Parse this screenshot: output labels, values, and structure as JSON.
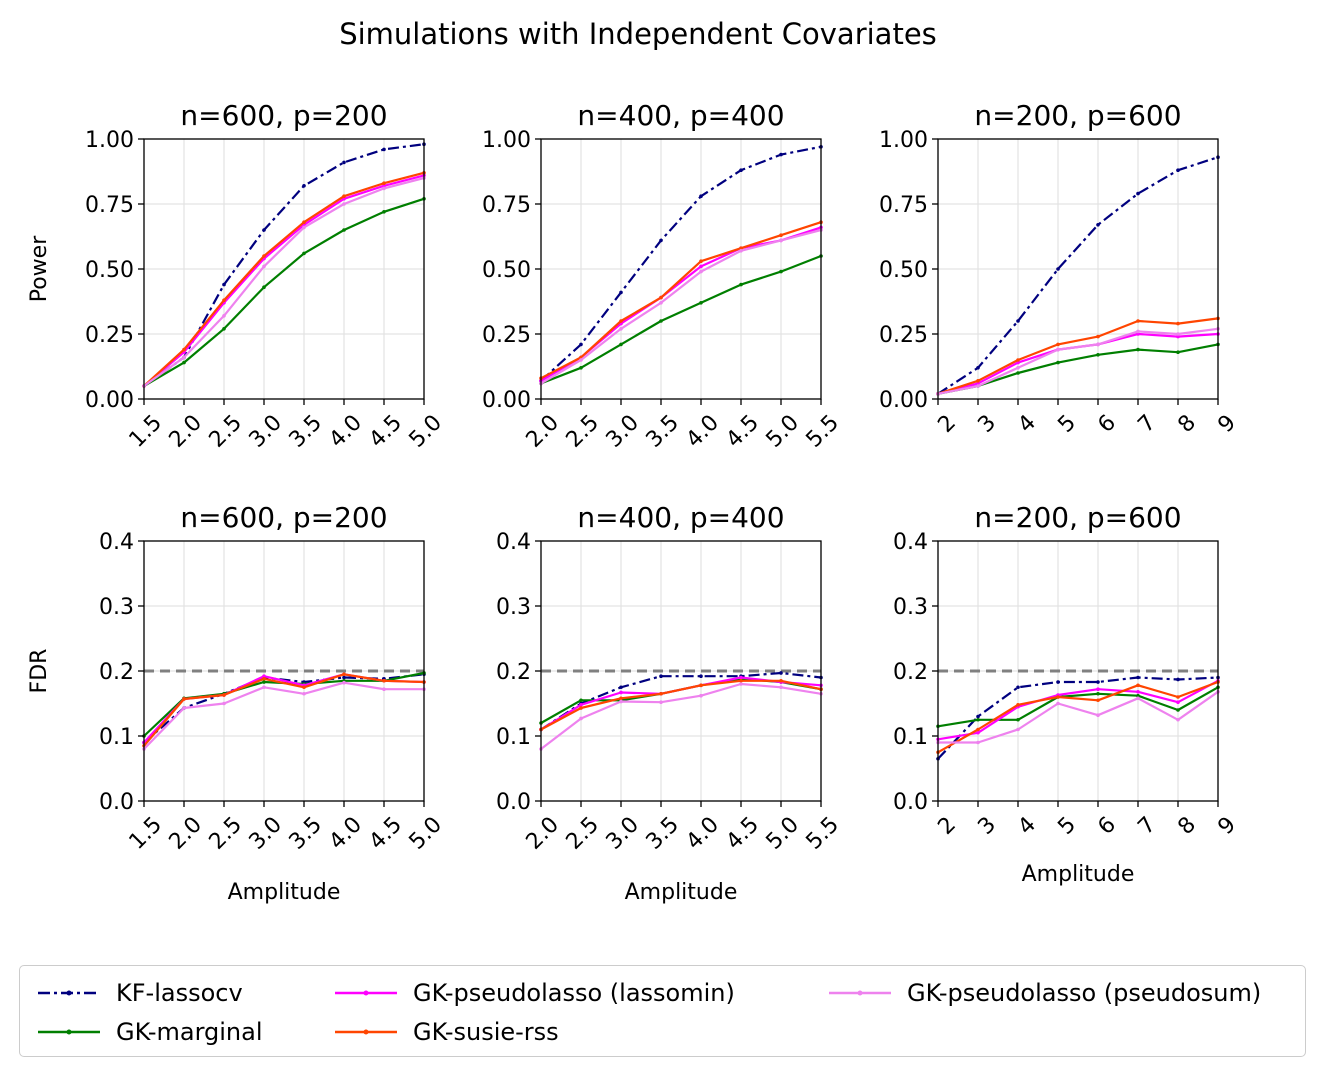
{
  "figure_title": "Simulations with Independent Covariates",
  "chart_data": [
    {
      "type": "line",
      "row": "power",
      "title": "n=600, p=200",
      "ylabel": "Power",
      "xlabel": "",
      "x": [
        1.5,
        2.0,
        2.5,
        3.0,
        3.5,
        4.0,
        4.5,
        5.0
      ],
      "x_tick_labels": [
        "1.5",
        "2.0",
        "2.5",
        "3.0",
        "3.5",
        "4.0",
        "4.5",
        "5.0"
      ],
      "xlim": [
        1.5,
        5.0
      ],
      "ylim": [
        0,
        1.0
      ],
      "y_ticks": [
        0,
        0.25,
        0.5,
        0.75,
        1.0
      ],
      "y_tick_labels": [
        "0.00",
        "0.25",
        "0.50",
        "0.75",
        "1.00"
      ],
      "series": [
        {
          "name": "KF-lassocv",
          "values": [
            0.05,
            0.16,
            0.44,
            0.65,
            0.82,
            0.91,
            0.96,
            0.98
          ]
        },
        {
          "name": "GK-marginal",
          "values": [
            0.05,
            0.14,
            0.27,
            0.43,
            0.56,
            0.65,
            0.72,
            0.77
          ]
        },
        {
          "name": "GK-pseudolasso (lassomin)",
          "values": [
            0.05,
            0.18,
            0.37,
            0.54,
            0.67,
            0.77,
            0.82,
            0.86
          ]
        },
        {
          "name": "GK-susie-rss",
          "values": [
            0.05,
            0.19,
            0.38,
            0.55,
            0.68,
            0.78,
            0.83,
            0.87
          ]
        },
        {
          "name": "GK-pseudolasso (pseudosum)",
          "values": [
            0.05,
            0.16,
            0.32,
            0.51,
            0.66,
            0.75,
            0.81,
            0.85
          ]
        }
      ]
    },
    {
      "type": "line",
      "row": "power",
      "title": "n=400, p=400",
      "ylabel": "",
      "xlabel": "",
      "x": [
        2.0,
        2.5,
        3.0,
        3.5,
        4.0,
        4.5,
        5.0,
        5.5
      ],
      "x_tick_labels": [
        "2.0",
        "2.5",
        "3.0",
        "3.5",
        "4.0",
        "4.5",
        "5.0",
        "5.5"
      ],
      "xlim": [
        2.0,
        5.5
      ],
      "ylim": [
        0,
        1.0
      ],
      "y_ticks": [
        0,
        0.25,
        0.5,
        0.75,
        1.0
      ],
      "y_tick_labels": [
        "0.00",
        "0.25",
        "0.50",
        "0.75",
        "1.00"
      ],
      "series": [
        {
          "name": "KF-lassocv",
          "values": [
            0.07,
            0.21,
            0.41,
            0.61,
            0.78,
            0.88,
            0.94,
            0.97
          ]
        },
        {
          "name": "GK-marginal",
          "values": [
            0.06,
            0.12,
            0.21,
            0.3,
            0.37,
            0.44,
            0.49,
            0.55
          ]
        },
        {
          "name": "GK-pseudolasso (lassomin)",
          "values": [
            0.07,
            0.16,
            0.29,
            0.39,
            0.51,
            0.58,
            0.61,
            0.66
          ]
        },
        {
          "name": "GK-susie-rss",
          "values": [
            0.08,
            0.16,
            0.3,
            0.39,
            0.53,
            0.58,
            0.63,
            0.68
          ]
        },
        {
          "name": "GK-pseudolasso (pseudosum)",
          "values": [
            0.06,
            0.15,
            0.27,
            0.37,
            0.49,
            0.57,
            0.61,
            0.65
          ]
        }
      ]
    },
    {
      "type": "line",
      "row": "power",
      "title": "n=200, p=600",
      "ylabel": "",
      "xlabel": "",
      "x": [
        2,
        3,
        4,
        5,
        6,
        7,
        8,
        9
      ],
      "x_tick_labels": [
        "2",
        "3",
        "4",
        "5",
        "6",
        "7",
        "8",
        "9"
      ],
      "xlim": [
        2,
        9
      ],
      "ylim": [
        0,
        1.0
      ],
      "y_ticks": [
        0,
        0.25,
        0.5,
        0.75,
        1.0
      ],
      "y_tick_labels": [
        "0.00",
        "0.25",
        "0.50",
        "0.75",
        "1.00"
      ],
      "series": [
        {
          "name": "KF-lassocv",
          "values": [
            0.02,
            0.12,
            0.3,
            0.5,
            0.67,
            0.79,
            0.88,
            0.93
          ]
        },
        {
          "name": "GK-marginal",
          "values": [
            0.02,
            0.05,
            0.1,
            0.14,
            0.17,
            0.19,
            0.18,
            0.21
          ]
        },
        {
          "name": "GK-pseudolasso (lassomin)",
          "values": [
            0.02,
            0.06,
            0.14,
            0.19,
            0.21,
            0.25,
            0.24,
            0.25
          ]
        },
        {
          "name": "GK-susie-rss",
          "values": [
            0.02,
            0.07,
            0.15,
            0.21,
            0.24,
            0.3,
            0.29,
            0.31
          ]
        },
        {
          "name": "GK-pseudolasso (pseudosum)",
          "values": [
            0.02,
            0.05,
            0.12,
            0.19,
            0.21,
            0.26,
            0.25,
            0.27
          ]
        }
      ]
    },
    {
      "type": "line",
      "row": "fdr",
      "title": "n=600, p=200",
      "ylabel": "FDR",
      "xlabel": "Amplitude",
      "x": [
        1.5,
        2.0,
        2.5,
        3.0,
        3.5,
        4.0,
        4.5,
        5.0
      ],
      "x_tick_labels": [
        "1.5",
        "2.0",
        "2.5",
        "3.0",
        "3.5",
        "4.0",
        "4.5",
        "5.0"
      ],
      "xlim": [
        1.5,
        5.0
      ],
      "ylim": [
        0,
        0.4
      ],
      "y_ticks": [
        0,
        0.1,
        0.2,
        0.3,
        0.4
      ],
      "y_tick_labels": [
        "0.0",
        "0.1",
        "0.2",
        "0.3",
        "0.4"
      ],
      "target_fdr": 0.2,
      "series": [
        {
          "name": "KF-lassocv",
          "values": [
            0.09,
            0.143,
            0.165,
            0.19,
            0.183,
            0.19,
            0.188,
            0.195
          ]
        },
        {
          "name": "GK-marginal",
          "values": [
            0.1,
            0.158,
            0.165,
            0.183,
            0.18,
            0.185,
            0.185,
            0.197
          ]
        },
        {
          "name": "GK-pseudolasso (lassomin)",
          "values": [
            0.09,
            0.157,
            0.163,
            0.192,
            0.178,
            0.195,
            0.185,
            0.183
          ]
        },
        {
          "name": "GK-susie-rss",
          "values": [
            0.085,
            0.157,
            0.163,
            0.188,
            0.175,
            0.195,
            0.185,
            0.183
          ]
        },
        {
          "name": "GK-pseudolasso (pseudosum)",
          "values": [
            0.08,
            0.143,
            0.15,
            0.175,
            0.165,
            0.182,
            0.172,
            0.172
          ]
        }
      ]
    },
    {
      "type": "line",
      "row": "fdr",
      "title": "n=400, p=400",
      "ylabel": "",
      "xlabel": "Amplitude",
      "x": [
        2.0,
        2.5,
        3.0,
        3.5,
        4.0,
        4.5,
        5.0,
        5.5
      ],
      "x_tick_labels": [
        "2.0",
        "2.5",
        "3.0",
        "3.5",
        "4.0",
        "4.5",
        "5.0",
        "5.5"
      ],
      "xlim": [
        2.0,
        5.5
      ],
      "ylim": [
        0,
        0.4
      ],
      "y_ticks": [
        0,
        0.1,
        0.2,
        0.3,
        0.4
      ],
      "y_tick_labels": [
        "0.0",
        "0.1",
        "0.2",
        "0.3",
        "0.4"
      ],
      "target_fdr": 0.2,
      "series": [
        {
          "name": "KF-lassocv",
          "values": [
            0.11,
            0.15,
            0.175,
            0.192,
            0.192,
            0.192,
            0.197,
            0.19
          ]
        },
        {
          "name": "GK-marginal",
          "values": [
            0.12,
            0.155,
            0.155,
            0.165,
            0.178,
            0.188,
            0.183,
            0.172
          ]
        },
        {
          "name": "GK-pseudolasso (lassomin)",
          "values": [
            0.11,
            0.148,
            0.167,
            0.165,
            0.178,
            0.19,
            0.183,
            0.178
          ]
        },
        {
          "name": "GK-susie-rss",
          "values": [
            0.11,
            0.143,
            0.158,
            0.165,
            0.178,
            0.185,
            0.185,
            0.172
          ]
        },
        {
          "name": "GK-pseudolasso (pseudosum)",
          "values": [
            0.08,
            0.127,
            0.153,
            0.152,
            0.162,
            0.18,
            0.175,
            0.165
          ]
        }
      ]
    },
    {
      "type": "line",
      "row": "fdr",
      "title": "n=200, p=600",
      "ylabel": "",
      "xlabel": "Amplitude",
      "x": [
        2,
        3,
        4,
        5,
        6,
        7,
        8,
        9
      ],
      "x_tick_labels": [
        "2",
        "3",
        "4",
        "5",
        "6",
        "7",
        "8",
        "9"
      ],
      "xlim": [
        2,
        9
      ],
      "ylim": [
        0,
        0.4
      ],
      "y_ticks": [
        0,
        0.1,
        0.2,
        0.3,
        0.4
      ],
      "y_tick_labels": [
        "0.0",
        "0.1",
        "0.2",
        "0.3",
        "0.4"
      ],
      "target_fdr": 0.2,
      "series": [
        {
          "name": "KF-lassocv",
          "values": [
            0.065,
            0.13,
            0.175,
            0.183,
            0.183,
            0.19,
            0.187,
            0.19
          ]
        },
        {
          "name": "GK-marginal",
          "values": [
            0.115,
            0.125,
            0.125,
            0.16,
            0.165,
            0.162,
            0.14,
            0.175
          ]
        },
        {
          "name": "GK-pseudolasso (lassomin)",
          "values": [
            0.095,
            0.105,
            0.145,
            0.163,
            0.172,
            0.168,
            0.152,
            0.185
          ]
        },
        {
          "name": "GK-susie-rss",
          "values": [
            0.075,
            0.11,
            0.148,
            0.16,
            0.155,
            0.178,
            0.16,
            0.183
          ]
        },
        {
          "name": "GK-pseudolasso (pseudosum)",
          "values": [
            0.09,
            0.09,
            0.11,
            0.15,
            0.132,
            0.158,
            0.125,
            0.168
          ]
        }
      ]
    }
  ],
  "legend": {
    "items": [
      {
        "label": "KF-lassocv",
        "color": "#00007f",
        "style": "dashdot"
      },
      {
        "label": "GK-marginal",
        "color": "#007f00",
        "style": "solid"
      },
      {
        "label": "GK-pseudolasso (lassomin)",
        "color": "#ff00ff",
        "style": "solid"
      },
      {
        "label": "GK-susie-rss",
        "color": "#ff4500",
        "style": "solid"
      },
      {
        "label": "GK-pseudolasso (pseudosum)",
        "color": "#ee82ee",
        "style": "solid"
      }
    ]
  },
  "series_colors": {
    "KF-lassocv": "#00007f",
    "GK-marginal": "#007f00",
    "GK-pseudolasso (lassomin)": "#ff00ff",
    "GK-susie-rss": "#ff4500",
    "GK-pseudolasso (pseudosum)": "#ee82ee"
  },
  "reference_line_color": "#808080"
}
